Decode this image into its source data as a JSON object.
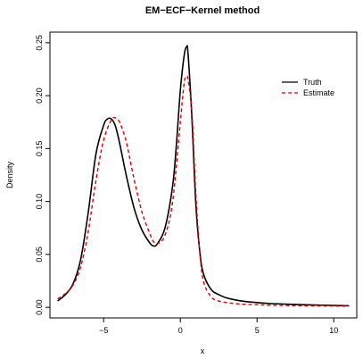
{
  "chart_data": {
    "type": "line",
    "title": "EM−ECF−Kernel method",
    "xlabel": "x",
    "ylabel": "Density",
    "xlim": [
      -8.5,
      11.5
    ],
    "ylim": [
      -0.01,
      0.26
    ],
    "x_ticks": [
      -5,
      0,
      5,
      10
    ],
    "x_tick_labels": [
      "−5",
      "0",
      "5",
      "10"
    ],
    "y_ticks": [
      0.0,
      0.05,
      0.1,
      0.15,
      0.2,
      0.25
    ],
    "y_tick_labels": [
      "0.00",
      "0.05",
      "0.10",
      "0.15",
      "0.20",
      "0.25"
    ],
    "grid": false,
    "legend_position": "top-right",
    "series": [
      {
        "name": "Truth",
        "color": "#000000",
        "dash": "solid",
        "x": [
          -8,
          -7.5,
          -7,
          -6.5,
          -6,
          -5.5,
          -5,
          -4.75,
          -4.5,
          -4.25,
          -4,
          -3.5,
          -3,
          -2.5,
          -2,
          -1.75,
          -1.5,
          -1,
          -0.5,
          -0.25,
          0,
          0.25,
          0.4,
          0.5,
          0.75,
          1,
          1.25,
          1.5,
          2,
          2.5,
          3,
          4,
          5,
          6,
          8,
          10,
          11
        ],
        "y": [
          0.006,
          0.012,
          0.022,
          0.045,
          0.09,
          0.145,
          0.172,
          0.178,
          0.178,
          0.172,
          0.158,
          0.123,
          0.093,
          0.073,
          0.061,
          0.058,
          0.06,
          0.075,
          0.115,
          0.155,
          0.205,
          0.238,
          0.246,
          0.24,
          0.18,
          0.1,
          0.055,
          0.032,
          0.017,
          0.012,
          0.009,
          0.006,
          0.0045,
          0.0035,
          0.0025,
          0.0018,
          0.0015
        ]
      },
      {
        "name": "Estimate",
        "color": "#dd0000",
        "dash": "dashed",
        "x": [
          -8,
          -7.5,
          -7,
          -6.5,
          -6,
          -5.5,
          -5,
          -4.5,
          -4.25,
          -4,
          -3.75,
          -3.5,
          -3,
          -2.5,
          -2,
          -1.75,
          -1.5,
          -1,
          -0.5,
          0,
          0.25,
          0.4,
          0.5,
          0.75,
          1,
          1.25,
          1.5,
          2,
          2.5,
          3,
          4,
          5,
          6,
          8,
          10,
          11
        ],
        "y": [
          0.008,
          0.013,
          0.021,
          0.038,
          0.072,
          0.12,
          0.158,
          0.177,
          0.179,
          0.176,
          0.167,
          0.155,
          0.12,
          0.09,
          0.07,
          0.062,
          0.06,
          0.068,
          0.1,
          0.175,
          0.212,
          0.218,
          0.215,
          0.185,
          0.11,
          0.055,
          0.025,
          0.01,
          0.006,
          0.0045,
          0.003,
          0.0025,
          0.002,
          0.0015,
          0.0012,
          0.001
        ]
      }
    ]
  }
}
